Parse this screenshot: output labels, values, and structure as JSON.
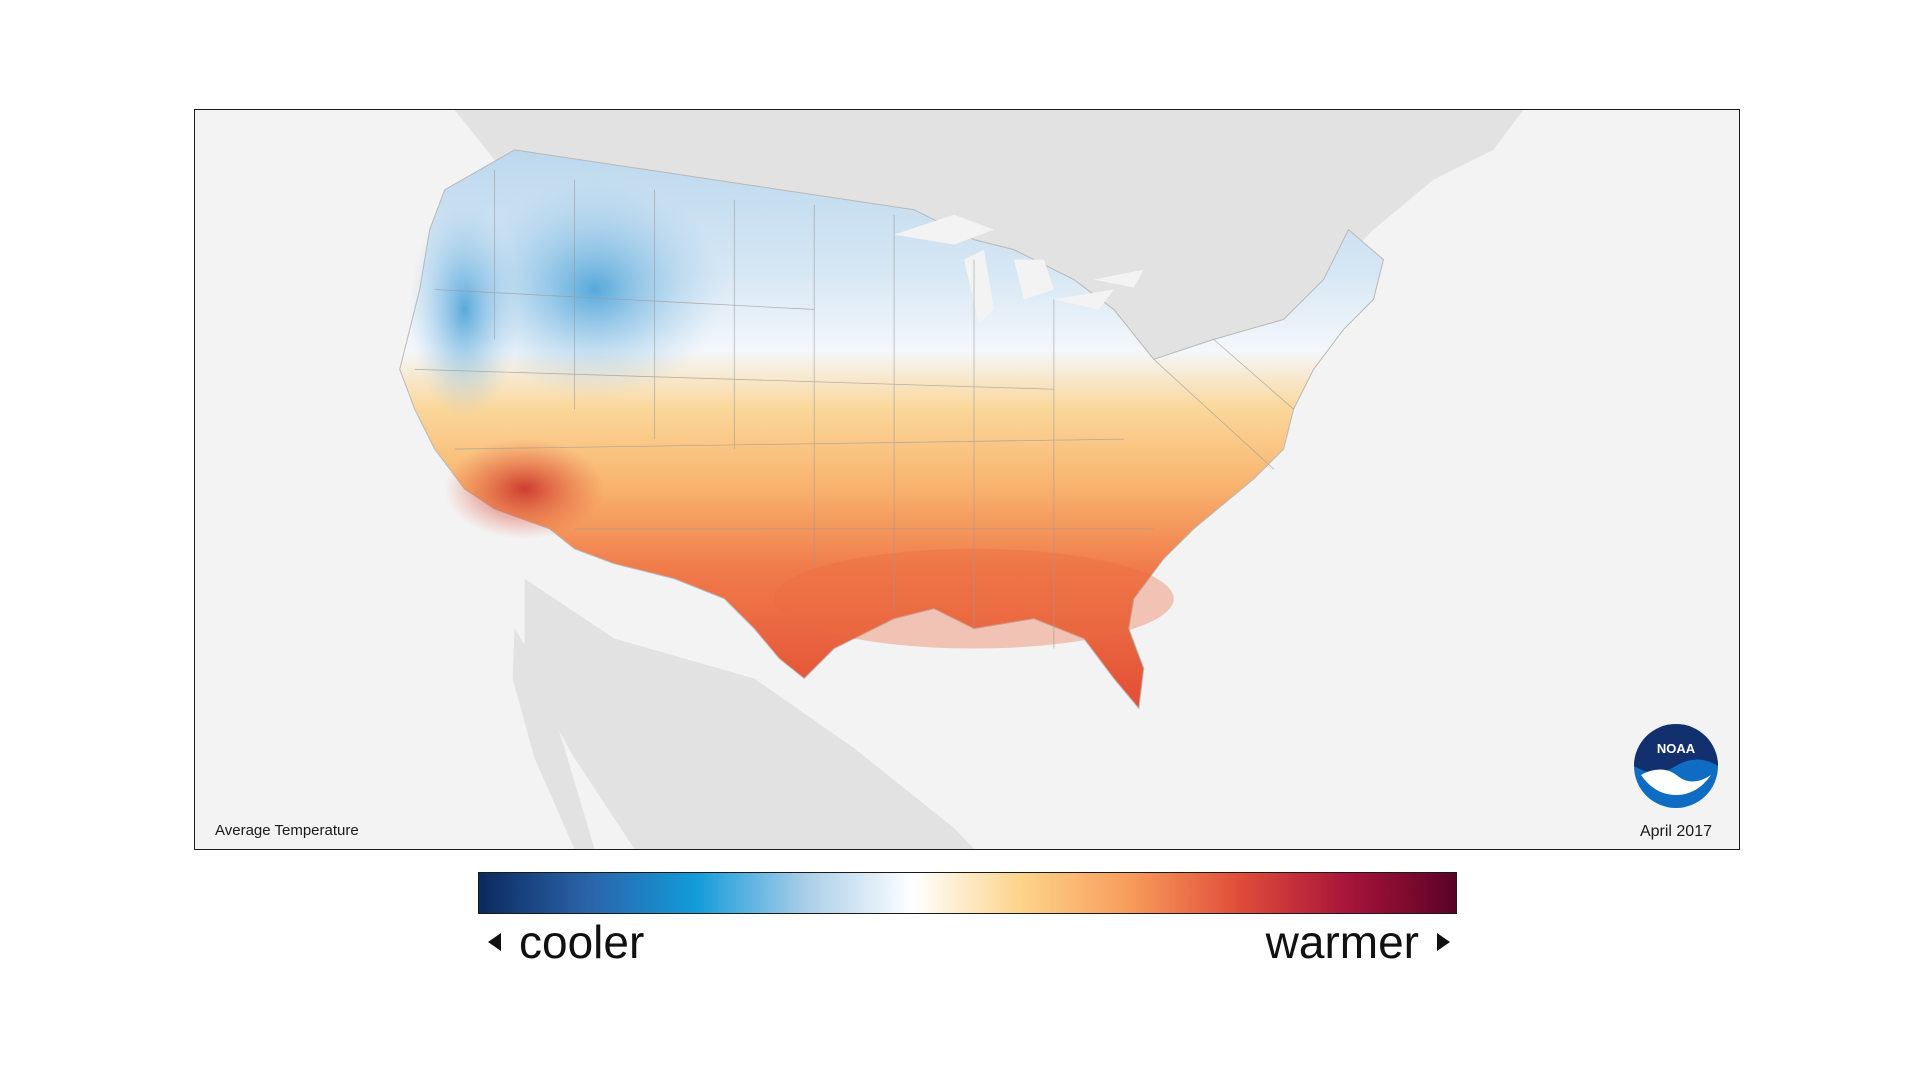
{
  "map": {
    "title": "Average Temperature",
    "date": "April 2017",
    "logo_text": "NOAA",
    "colors": {
      "ocean": "#f3f3f3",
      "neighbor_land": "#e2e2e2",
      "state_border": "#9a9a9a"
    }
  },
  "legend": {
    "cooler_label": "cooler",
    "warmer_label": "warmer",
    "gradient_stops": [
      "#0b2a5e",
      "#2b63a8",
      "#139bd9",
      "#a9cde8",
      "#ffffff",
      "#fcd38a",
      "#f79b5a",
      "#e04d3a",
      "#a8143a",
      "#5a0226"
    ]
  },
  "icons": {
    "left_arrow": "triangle-left-icon",
    "right_arrow": "triangle-right-icon",
    "logo": "noaa-logo-icon"
  }
}
